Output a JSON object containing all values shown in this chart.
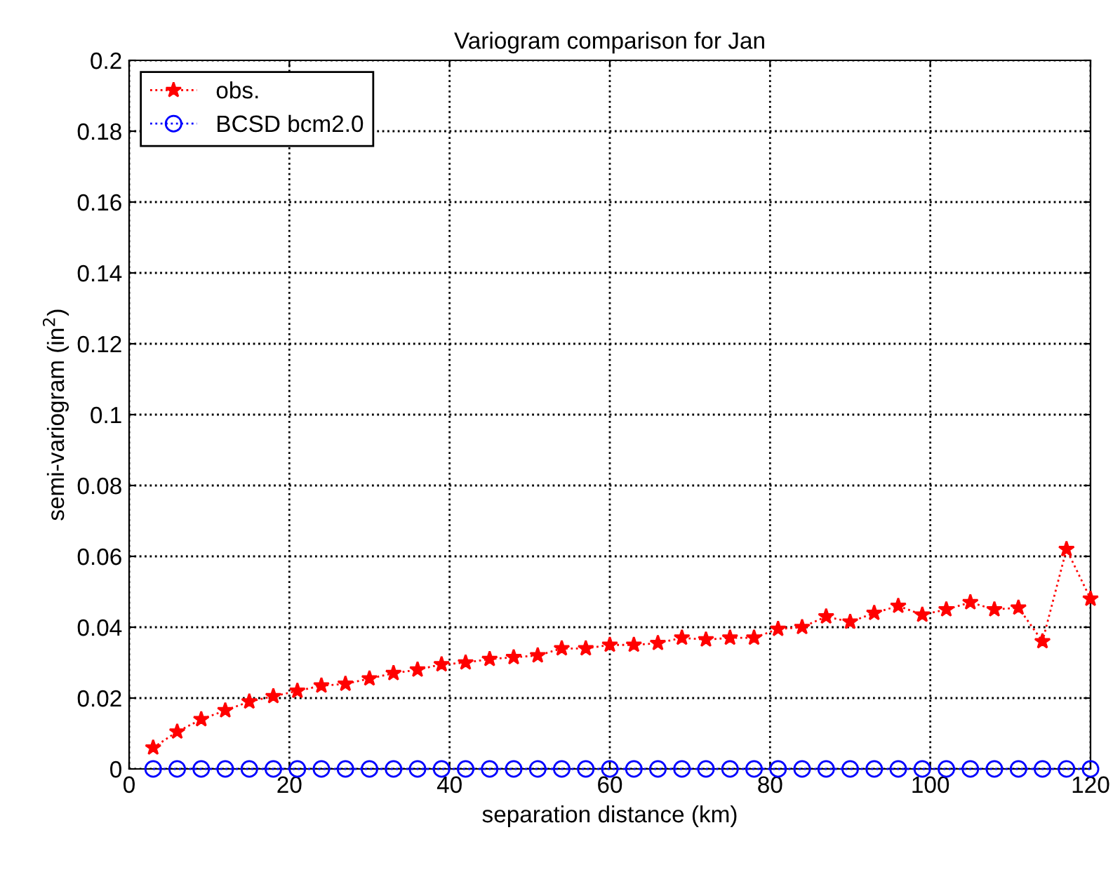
{
  "chart_data": {
    "type": "line",
    "title": "Variogram comparison for Jan",
    "xlabel": "separation distance (km)",
    "ylabel": "semi-variogram (in$^{2}$)",
    "x": [
      3,
      6,
      9,
      12,
      15,
      18,
      21,
      24,
      27,
      30,
      33,
      36,
      39,
      42,
      45,
      48,
      51,
      54,
      57,
      60,
      63,
      66,
      69,
      72,
      75,
      78,
      81,
      84,
      87,
      90,
      93,
      96,
      99,
      102,
      105,
      108,
      111,
      114,
      117,
      120
    ],
    "series": [
      {
        "name": "obs.",
        "color": "#ff0000",
        "marker": "star",
        "line_style": "dotted",
        "values": [
          0.006,
          0.0105,
          0.014,
          0.0165,
          0.019,
          0.0205,
          0.022,
          0.0235,
          0.024,
          0.0255,
          0.027,
          0.028,
          0.0295,
          0.03,
          0.031,
          0.0315,
          0.032,
          0.034,
          0.034,
          0.035,
          0.035,
          0.0355,
          0.037,
          0.0365,
          0.037,
          0.037,
          0.0395,
          0.04,
          0.043,
          0.0415,
          0.044,
          0.046,
          0.0435,
          0.045,
          0.047,
          0.045,
          0.0455,
          0.036,
          0.062,
          0.048
        ]
      },
      {
        "name": "BCSD bcm2.0",
        "color": "#0000ff",
        "marker": "circle",
        "line_style": "dotted",
        "values": [
          0,
          0,
          0,
          0,
          0,
          0,
          0,
          0,
          0,
          0,
          0,
          0,
          0,
          0,
          0,
          0,
          0,
          0,
          0,
          0,
          0,
          0,
          0,
          0,
          0,
          0,
          0,
          0,
          0,
          0,
          0,
          0,
          0,
          0,
          0,
          0,
          0,
          0,
          0,
          0
        ]
      }
    ],
    "xlim": [
      0,
      120
    ],
    "ylim": [
      0,
      0.2
    ],
    "xticks": [
      0,
      20,
      40,
      60,
      80,
      100,
      120
    ],
    "yticks": [
      0,
      0.02,
      0.04,
      0.06,
      0.08,
      0.1,
      0.12,
      0.14,
      0.16,
      0.18,
      0.2
    ],
    "grid": true,
    "legend": "top left"
  }
}
